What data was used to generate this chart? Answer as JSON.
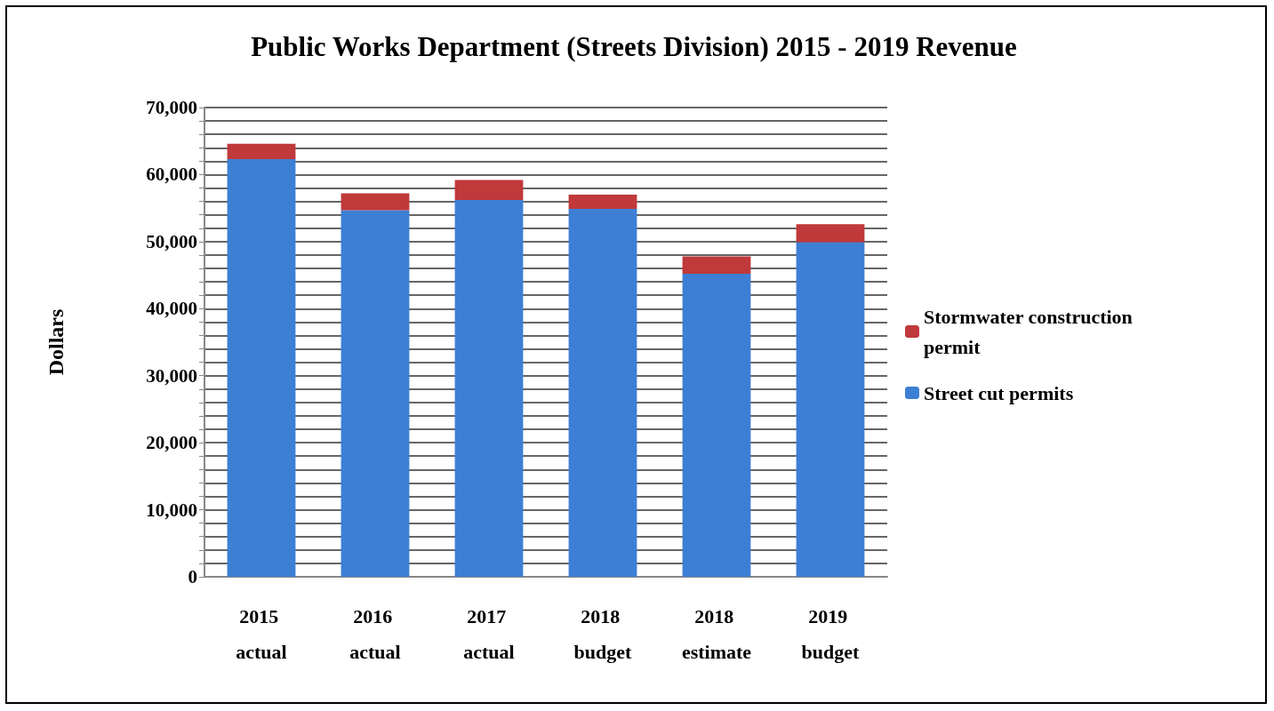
{
  "chart_data": {
    "type": "bar",
    "title": "Public Works Department (Streets Division) 2015 - 2019 Revenue",
    "ylabel": "Dollars",
    "categories": [
      "2015 actual",
      "2016 actual",
      "2017 actual",
      "2018 budget",
      "2018 estimate",
      "2019 budget"
    ],
    "stacked": true,
    "series": [
      {
        "name": "Street cut permits",
        "color": "#3d7fd4",
        "values": [
          62300,
          54700,
          56200,
          54900,
          45200,
          49900
        ]
      },
      {
        "name": "Stormwater construction permit",
        "color": "#c0393b",
        "values": [
          2300,
          2500,
          3000,
          2100,
          2600,
          2700
        ]
      }
    ],
    "ylim": [
      0,
      70000
    ],
    "yticks": [
      {
        "value": 0,
        "label": "0"
      },
      {
        "value": 2000,
        "label": null
      },
      {
        "value": 4000,
        "label": null
      },
      {
        "value": 6000,
        "label": null
      },
      {
        "value": 8000,
        "label": null
      },
      {
        "value": 10000,
        "label": "10,000"
      },
      {
        "value": 12000,
        "label": null
      },
      {
        "value": 14000,
        "label": null
      },
      {
        "value": 16000,
        "label": null
      },
      {
        "value": 18000,
        "label": null
      },
      {
        "value": 20000,
        "label": "20,000"
      },
      {
        "value": 22000,
        "label": null
      },
      {
        "value": 24000,
        "label": null
      },
      {
        "value": 26000,
        "label": null
      },
      {
        "value": 28000,
        "label": null
      },
      {
        "value": 30000,
        "label": "30,000"
      },
      {
        "value": 32000,
        "label": null
      },
      {
        "value": 34000,
        "label": null
      },
      {
        "value": 36000,
        "label": null
      },
      {
        "value": 38000,
        "label": null
      },
      {
        "value": 40000,
        "label": "40,000"
      },
      {
        "value": 42000,
        "label": null
      },
      {
        "value": 44000,
        "label": null
      },
      {
        "value": 46000,
        "label": null
      },
      {
        "value": 48000,
        "label": null
      },
      {
        "value": 50000,
        "label": "50,000"
      },
      {
        "value": 52000,
        "label": null
      },
      {
        "value": 54000,
        "label": null
      },
      {
        "value": 56000,
        "label": null
      },
      {
        "value": 58000,
        "label": null
      },
      {
        "value": 60000,
        "label": "60,000"
      },
      {
        "value": 62000,
        "label": null
      },
      {
        "value": 64000,
        "label": null
      },
      {
        "value": 66000,
        "label": null
      },
      {
        "value": 68000,
        "label": null
      },
      {
        "value": 70000,
        "label": "70,000"
      }
    ],
    "grid": "y",
    "legend": "right"
  }
}
